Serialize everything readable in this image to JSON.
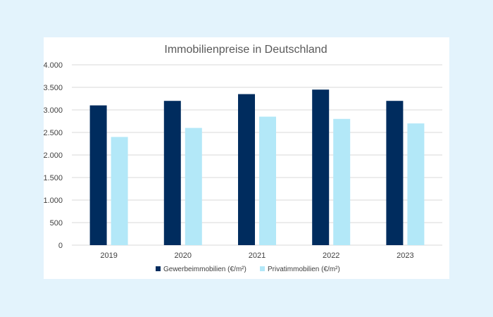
{
  "colors": {
    "page_background": "#e3f3fc",
    "card_background": "#ffffff"
  },
  "chart_data": {
    "type": "bar",
    "title": "Immobilienpreise in Deutschland",
    "xlabel": "",
    "ylabel": "",
    "categories": [
      "2019",
      "2020",
      "2021",
      "2022",
      "2023"
    ],
    "series": [
      {
        "name": "Gewerbeimmobilien (€/m²)",
        "color": "#002c5e",
        "values": [
          3100,
          3200,
          3350,
          3450,
          3200
        ]
      },
      {
        "name": "Privatimmobilien (€/m²)",
        "color": "#b3e8f8",
        "values": [
          2400,
          2600,
          2850,
          2800,
          2700
        ]
      }
    ],
    "ylim": [
      0,
      4000
    ],
    "yticks": [
      0,
      500,
      1000,
      1500,
      2000,
      2500,
      3000,
      3500,
      4000
    ],
    "ytick_labels": [
      "0",
      "500",
      "1.000",
      "1.500",
      "2.000",
      "2.500",
      "3.000",
      "3.500",
      "4.000"
    ],
    "grid": true,
    "legend_position": "bottom"
  }
}
